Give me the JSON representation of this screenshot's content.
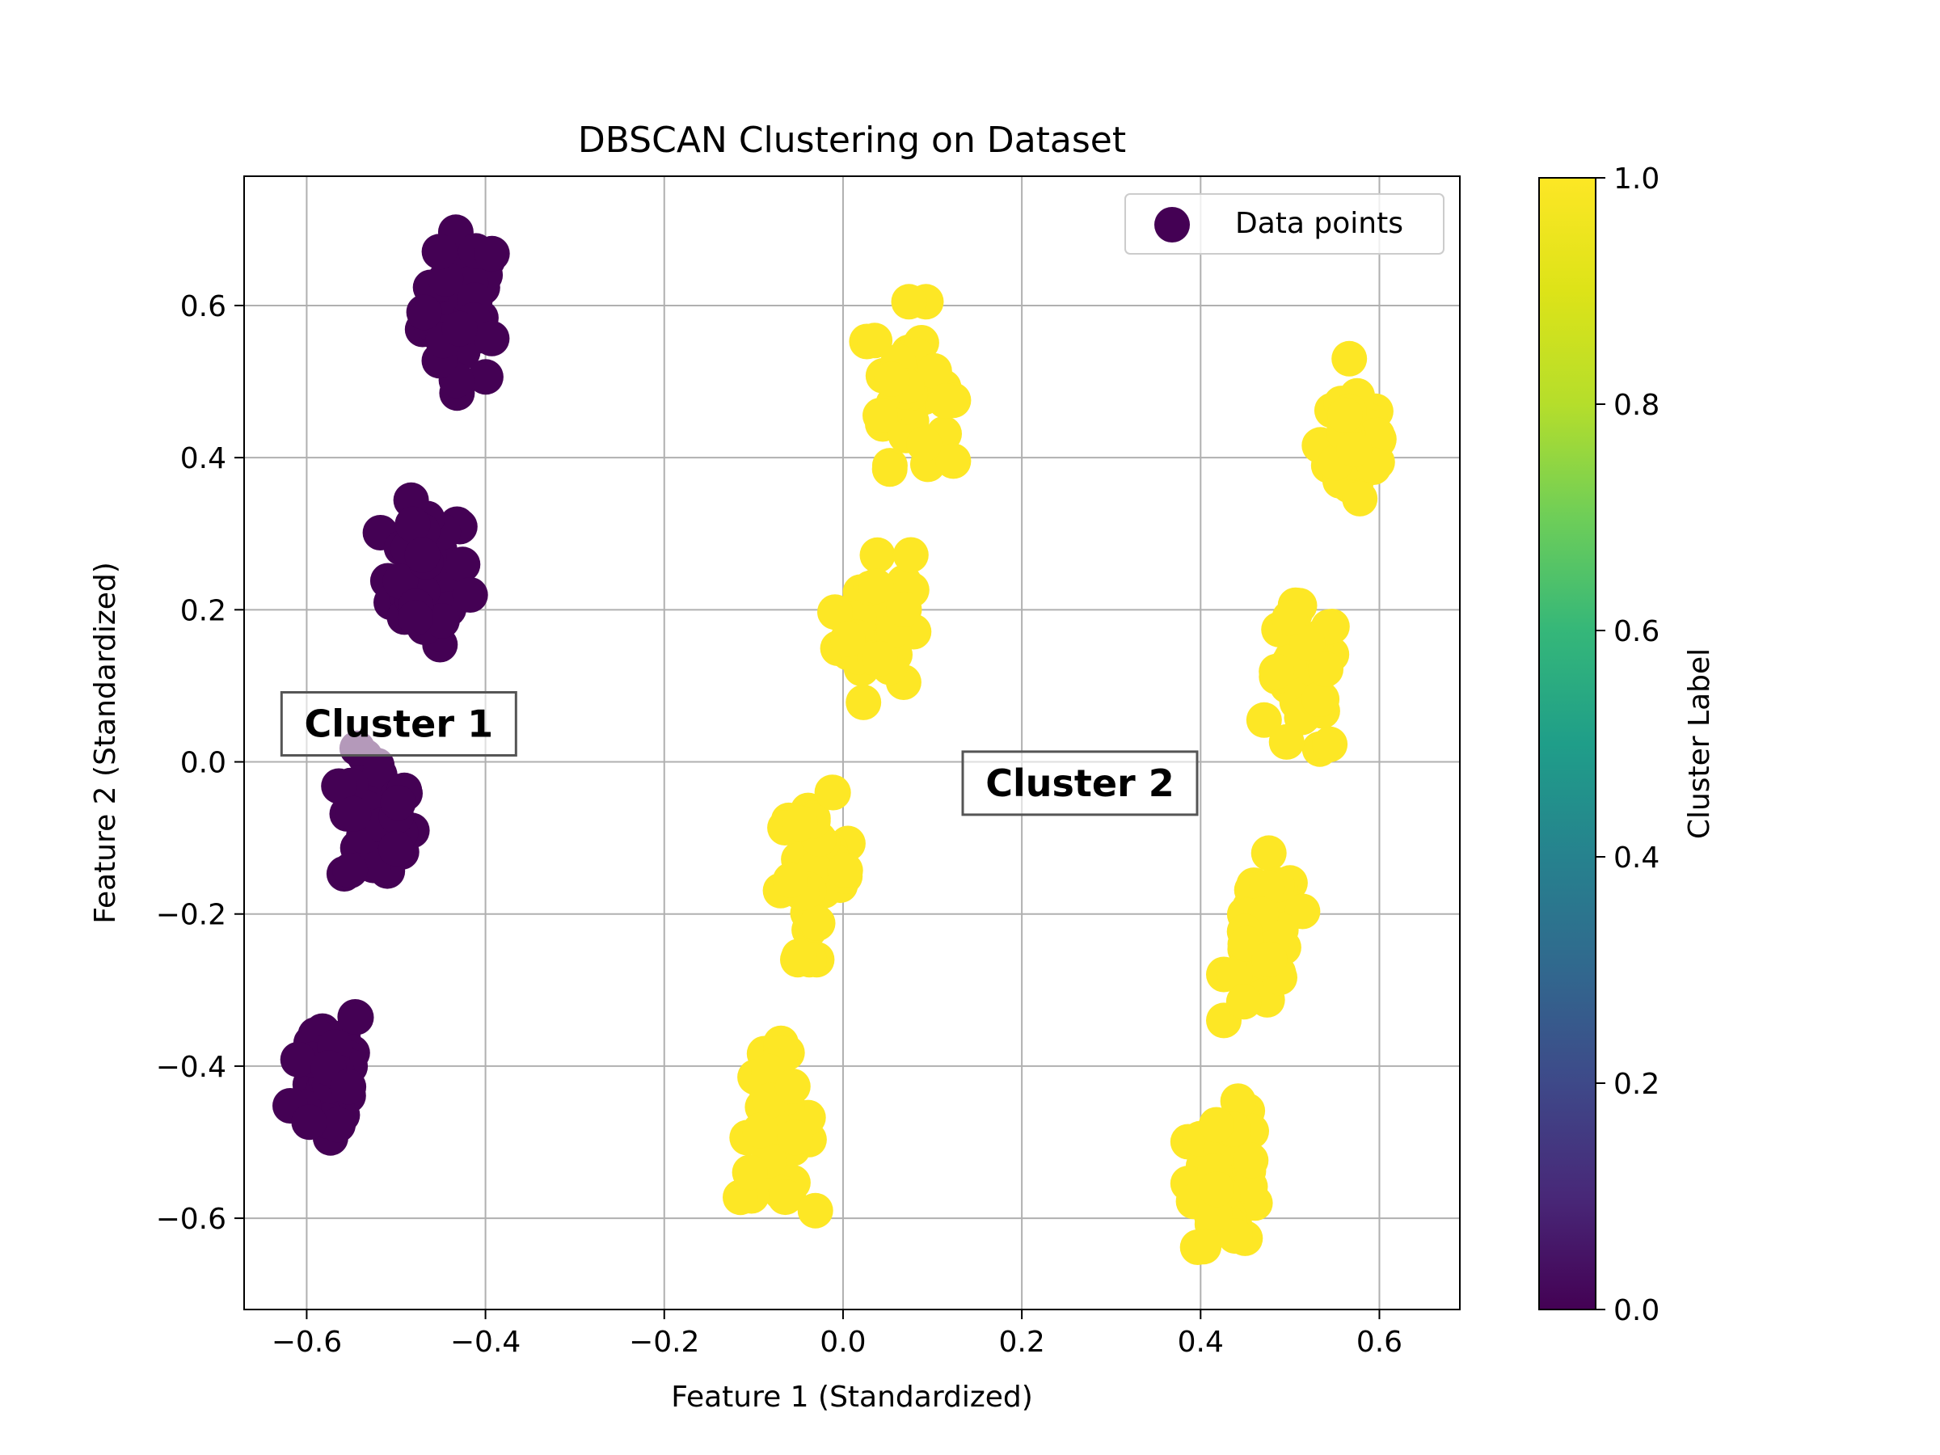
{
  "chart_data": {
    "type": "scatter",
    "title": "DBSCAN Clustering on Dataset",
    "xlabel": "Feature 1 (Standardized)",
    "ylabel": "Feature 2 (Standardized)",
    "xlim": [
      -0.67,
      0.69
    ],
    "ylim": [
      -0.72,
      0.77
    ],
    "xticks": [
      -0.6,
      -0.4,
      -0.2,
      0.0,
      0.2,
      0.4,
      0.6
    ],
    "yticks": [
      -0.6,
      -0.4,
      -0.2,
      0.0,
      0.2,
      0.4,
      0.6
    ],
    "xtick_labels": [
      "−0.6",
      "−0.4",
      "−0.2",
      "0.0",
      "0.2",
      "0.4",
      "0.6"
    ],
    "ytick_labels": [
      "−0.6",
      "−0.4",
      "−0.2",
      "0.0",
      "0.2",
      "0.4",
      "0.6"
    ],
    "grid": true,
    "legend": {
      "label": "Data points",
      "placement": "top-right"
    },
    "colorbar": {
      "label": "Cluster Label",
      "range": [
        0.0,
        1.0
      ],
      "ticks": [
        0.0,
        0.2,
        0.4,
        0.6,
        0.8,
        1.0
      ],
      "tick_labels": [
        "0.0",
        "0.2",
        "0.4",
        "0.6",
        "0.8",
        "1.0"
      ],
      "colormap": "viridis"
    },
    "colors": {
      "cluster_0": "#440154",
      "cluster_1": "#fde725"
    },
    "annotations": [
      {
        "text": "Cluster 1",
        "x": -0.497,
        "y": 0.05
      },
      {
        "text": "Cluster 2",
        "x": 0.265,
        "y": -0.028
      }
    ],
    "clusters": [
      {
        "label": 0,
        "center": [
          -0.425,
          0.595
        ],
        "spread": [
          0.022,
          0.05
        ],
        "n": 42
      },
      {
        "label": 0,
        "center": [
          -0.468,
          0.245
        ],
        "spread": [
          0.024,
          0.045
        ],
        "n": 42
      },
      {
        "label": 0,
        "center": [
          -0.52,
          -0.08
        ],
        "spread": [
          0.02,
          0.045
        ],
        "n": 42
      },
      {
        "label": 0,
        "center": [
          -0.575,
          -0.41
        ],
        "spread": [
          0.02,
          0.05
        ],
        "n": 42
      },
      {
        "label": 1,
        "center": [
          0.075,
          0.495
        ],
        "spread": [
          0.022,
          0.05
        ],
        "n": 42
      },
      {
        "label": 1,
        "center": [
          0.035,
          0.185
        ],
        "spread": [
          0.02,
          0.05
        ],
        "n": 42
      },
      {
        "label": 1,
        "center": [
          -0.03,
          -0.15
        ],
        "spread": [
          0.02,
          0.05
        ],
        "n": 42
      },
      {
        "label": 1,
        "center": [
          -0.075,
          -0.48
        ],
        "spread": [
          0.02,
          0.05
        ],
        "n": 42
      },
      {
        "label": 1,
        "center": [
          0.575,
          0.42
        ],
        "spread": [
          0.02,
          0.05
        ],
        "n": 42
      },
      {
        "label": 1,
        "center": [
          0.515,
          0.1
        ],
        "spread": [
          0.02,
          0.05
        ],
        "n": 42
      },
      {
        "label": 1,
        "center": [
          0.47,
          -0.23
        ],
        "spread": [
          0.02,
          0.05
        ],
        "n": 42
      },
      {
        "label": 1,
        "center": [
          0.43,
          -0.545
        ],
        "spread": [
          0.02,
          0.045
        ],
        "n": 42
      }
    ]
  }
}
